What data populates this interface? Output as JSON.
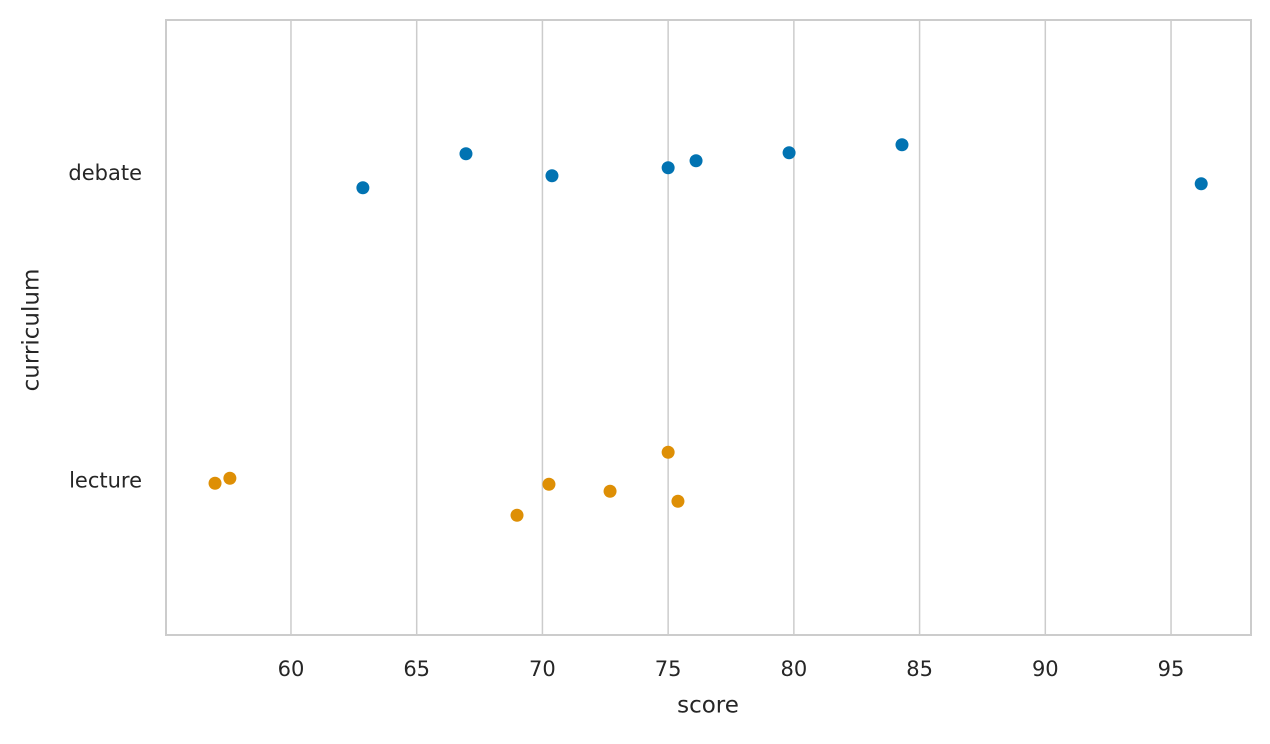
{
  "chart_data": {
    "type": "strip",
    "xlabel": "score",
    "ylabel": "curriculum",
    "categories": [
      "debate",
      "lecture"
    ],
    "values": [
      [
        62.86,
        66.96,
        70.38,
        75.0,
        76.11,
        79.81,
        84.3,
        96.2
      ],
      [
        56.98,
        57.57,
        68.99,
        70.26,
        72.69,
        75.0,
        75.39
      ]
    ],
    "colors": [
      "#0173b2",
      "#de8f05"
    ],
    "xlim": [
      55.03,
      98.18
    ],
    "xticks": [
      60,
      65,
      70,
      75,
      80,
      85,
      90,
      95
    ],
    "grid": true
  }
}
